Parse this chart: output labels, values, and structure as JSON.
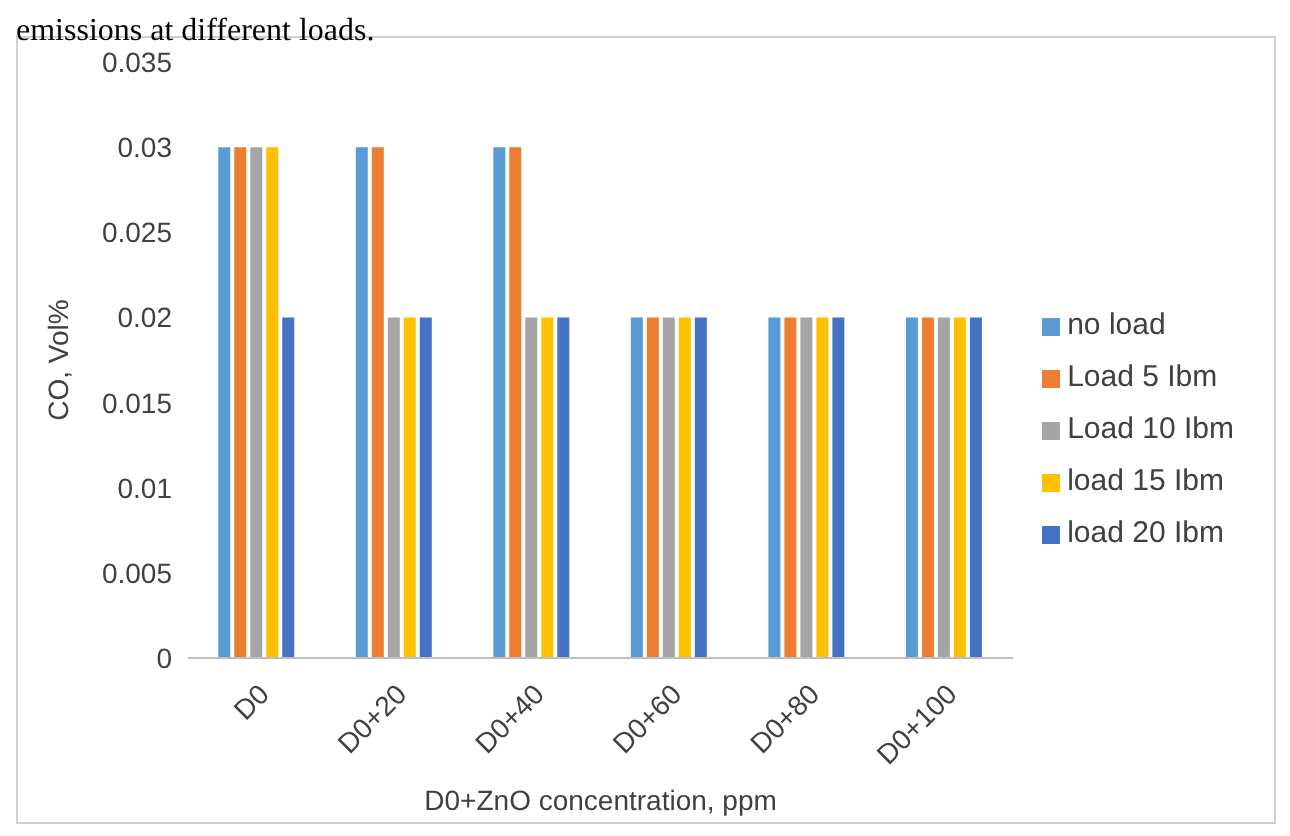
{
  "chart_data": {
    "type": "bar",
    "annotations": [
      "emissions at different loads."
    ],
    "xlabel": "D0+ZnO concentration, ppm",
    "ylabel": "CO, Vol%",
    "categories": [
      "D0",
      "D0+20",
      "D0+40",
      "D0+60",
      "D0+80",
      "D0+100"
    ],
    "series": [
      {
        "name": "no load",
        "color": "#5b9bd5",
        "values": [
          0.03,
          0.03,
          0.03,
          0.02,
          0.02,
          0.02
        ]
      },
      {
        "name": "Load 5 Ibm",
        "color": "#ed7d31",
        "values": [
          0.03,
          0.03,
          0.03,
          0.02,
          0.02,
          0.02
        ]
      },
      {
        "name": "Load 10 Ibm",
        "color": "#a5a5a5",
        "values": [
          0.03,
          0.02,
          0.02,
          0.02,
          0.02,
          0.02
        ]
      },
      {
        "name": "load 15 Ibm",
        "color": "#ffc000",
        "values": [
          0.03,
          0.02,
          0.02,
          0.02,
          0.02,
          0.02
        ]
      },
      {
        "name": "load 20 Ibm",
        "color": "#4472c4",
        "values": [
          0.02,
          0.02,
          0.02,
          0.02,
          0.02,
          0.02
        ]
      }
    ],
    "ylim": [
      0,
      0.035
    ],
    "yticks": [
      0,
      0.005,
      0.01,
      0.015,
      0.02,
      0.025,
      0.03,
      0.035
    ],
    "grid": false,
    "legend": "right"
  }
}
